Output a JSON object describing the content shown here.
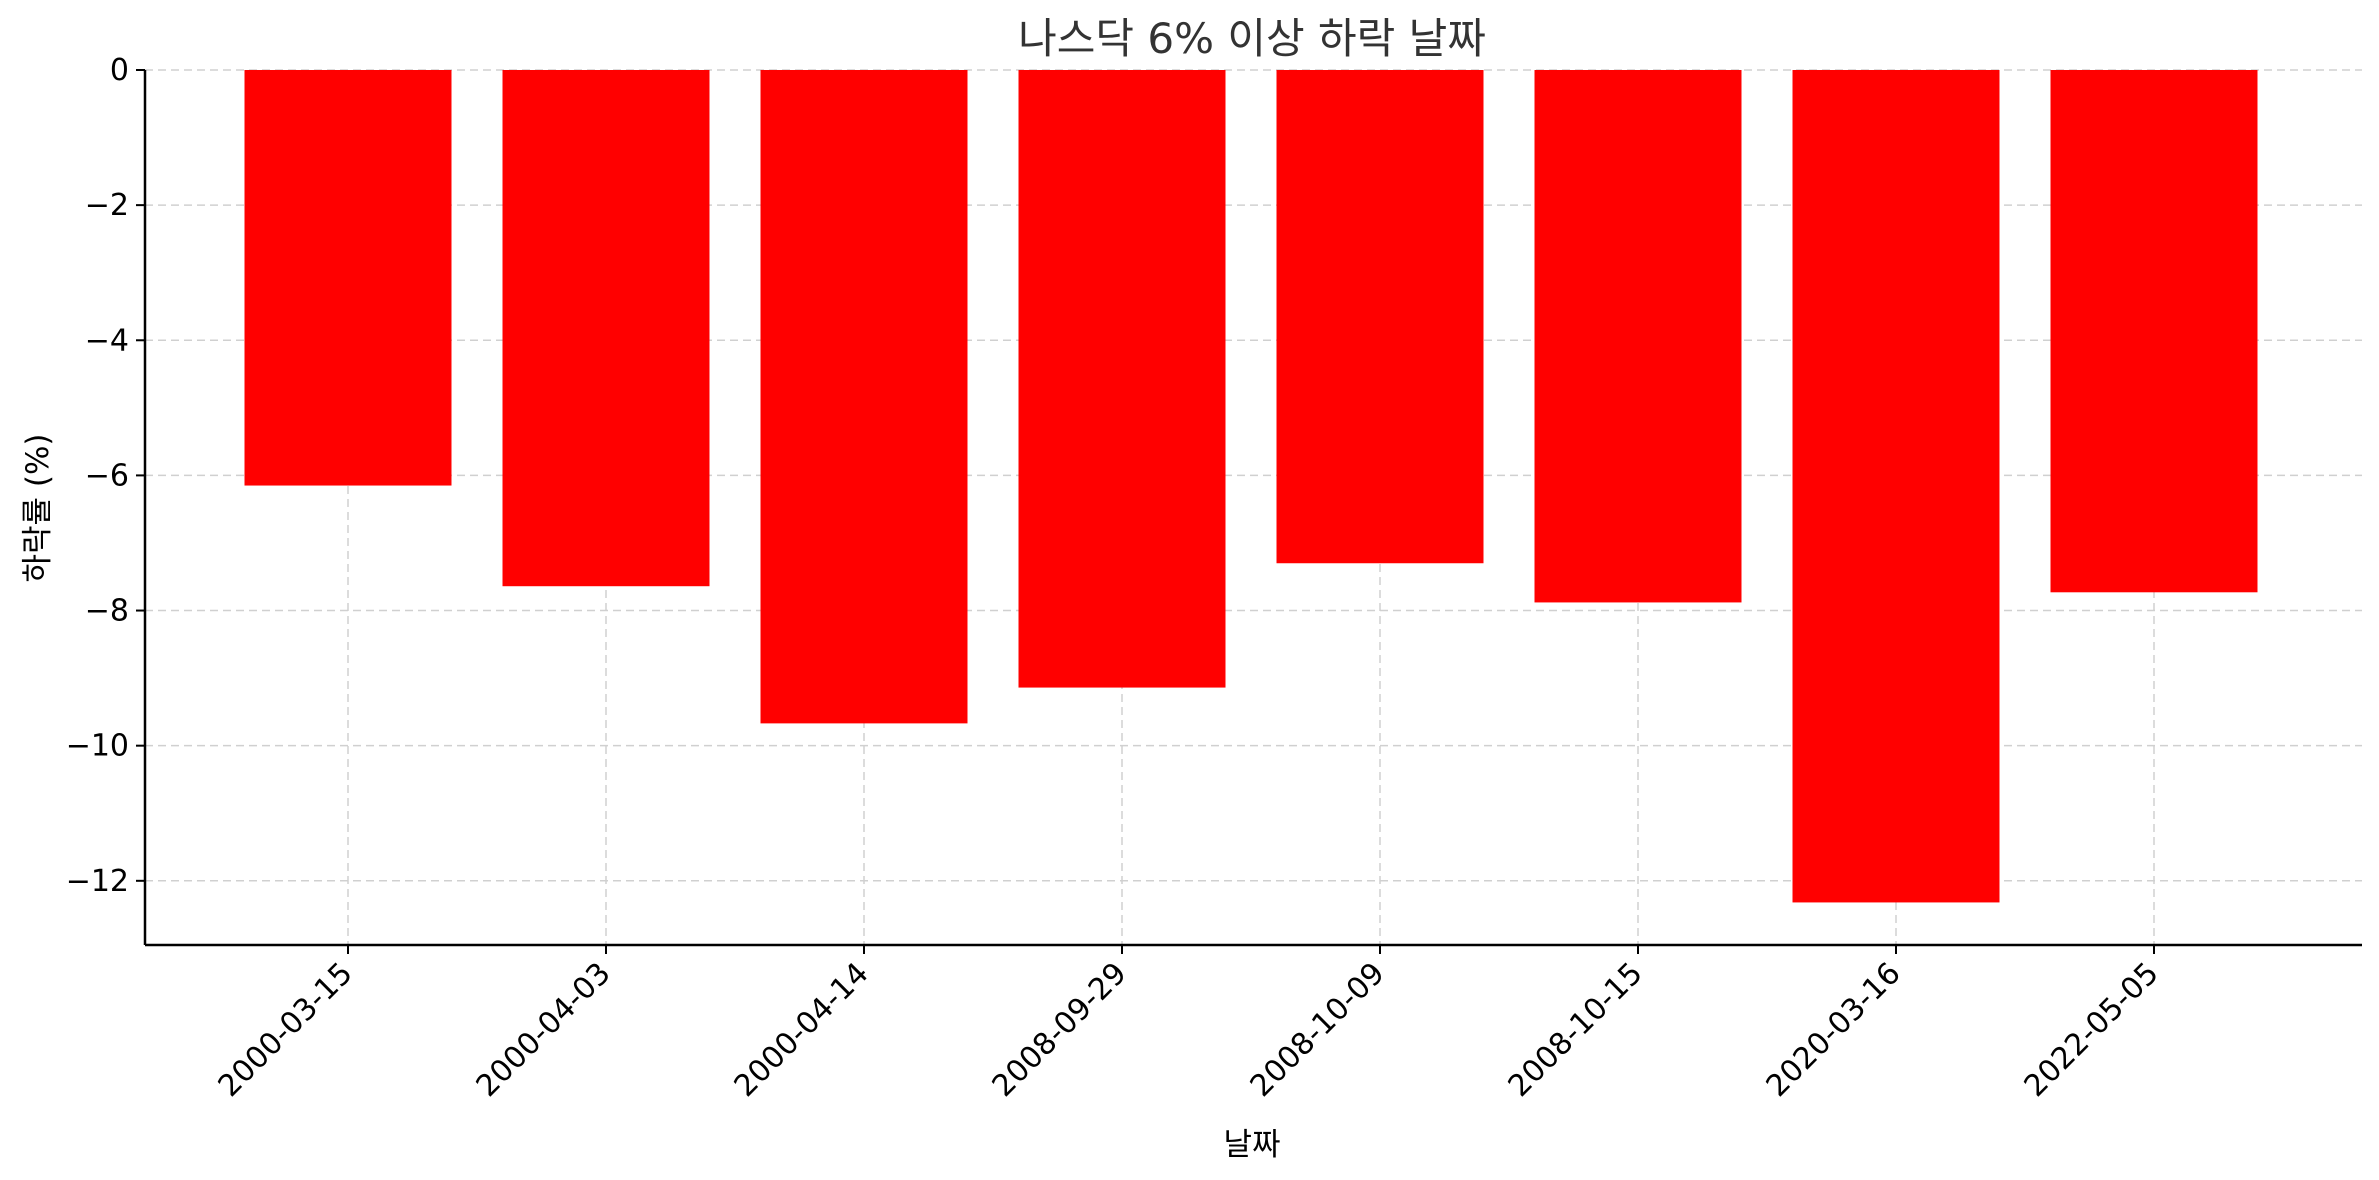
{
  "chart_data": {
    "type": "bar",
    "title": "나스닥 6% 이상 하락 날짜",
    "xlabel": "날짜",
    "ylabel": "하락률 (%)",
    "categories": [
      "2000-03-15",
      "2000-04-03",
      "2000-04-14",
      "2008-09-29",
      "2008-10-09",
      "2008-10-15",
      "2020-03-16",
      "2022-05-05"
    ],
    "values": [
      -6.15,
      -7.64,
      -9.67,
      -9.14,
      -7.3,
      -7.88,
      -12.32,
      -7.73
    ],
    "ylim": [
      -12.95,
      0
    ],
    "yticks": [
      0,
      -2,
      -4,
      -6,
      -8,
      -10,
      -12
    ],
    "ytick_labels": [
      "0",
      "−2",
      "−4",
      "−6",
      "−8",
      "−10",
      "−12"
    ],
    "grid": true,
    "bar_color": "#ff0000"
  }
}
